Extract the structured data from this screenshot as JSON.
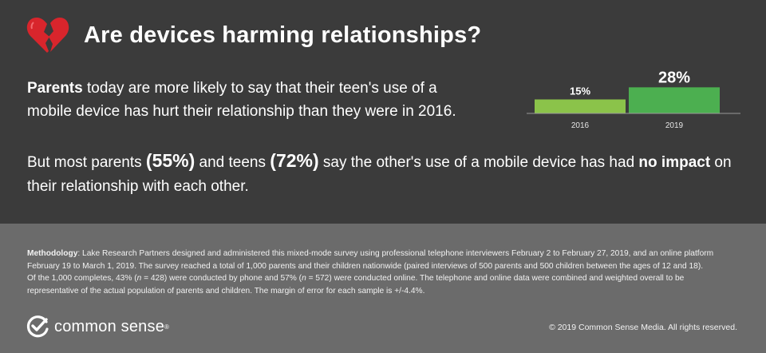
{
  "header": {
    "icon": "broken-heart-icon",
    "title": "Are devices harming relationships?"
  },
  "paragraph1": {
    "lead": "Parents",
    "text": " today are more likely to say that their teen's use of a mobile device has hurt their relationship than they were in 2016."
  },
  "paragraph2": {
    "part1": "But most parents ",
    "parents_pct": "(55%)",
    "part2": " and teens ",
    "teens_pct": "(72%)",
    "part3": " say the other's use of a mobile device has had ",
    "emphasis": "no impact",
    "part4": " on their relationship with each other."
  },
  "chart_data": {
    "type": "bar",
    "categories": [
      "2016",
      "2019"
    ],
    "values": [
      15,
      28
    ],
    "value_labels": [
      "15%",
      "28%"
    ],
    "colors": [
      "#8bc34a",
      "#4caf50"
    ],
    "title": "",
    "xlabel": "",
    "ylabel": "",
    "ylim": [
      0,
      30
    ],
    "grid": false
  },
  "methodology": {
    "label": "Methodology",
    "line1": ": Lake Research Partners designed and administered this mixed-mode survey using professional telephone interviewers February 2 to February 27, 2019, and an online platform",
    "line2": "February 19 to March 1, 2019. The survey reached a total of 1,000 parents and their children nationwide (paired interviews of 500 parents and 500 children between the ages of 12 and 18).",
    "line3a": "Of the 1,000 completes, 43% (",
    "n1_var": "n",
    "line3b": " = 428) were conducted by phone and 57% (",
    "n2_var": "n",
    "line3c": " = 572) were conducted online. The telephone and online data were combined and weighted overall to be",
    "line4": "representative of the actual population of parents and children. The margin of error for each sample is +/-4.4%."
  },
  "footer": {
    "logo_icon": "check-circle-icon",
    "brand": "common sense",
    "reg_mark": "®",
    "copyright": "© 2019 Common Sense Media. All rights reserved."
  }
}
